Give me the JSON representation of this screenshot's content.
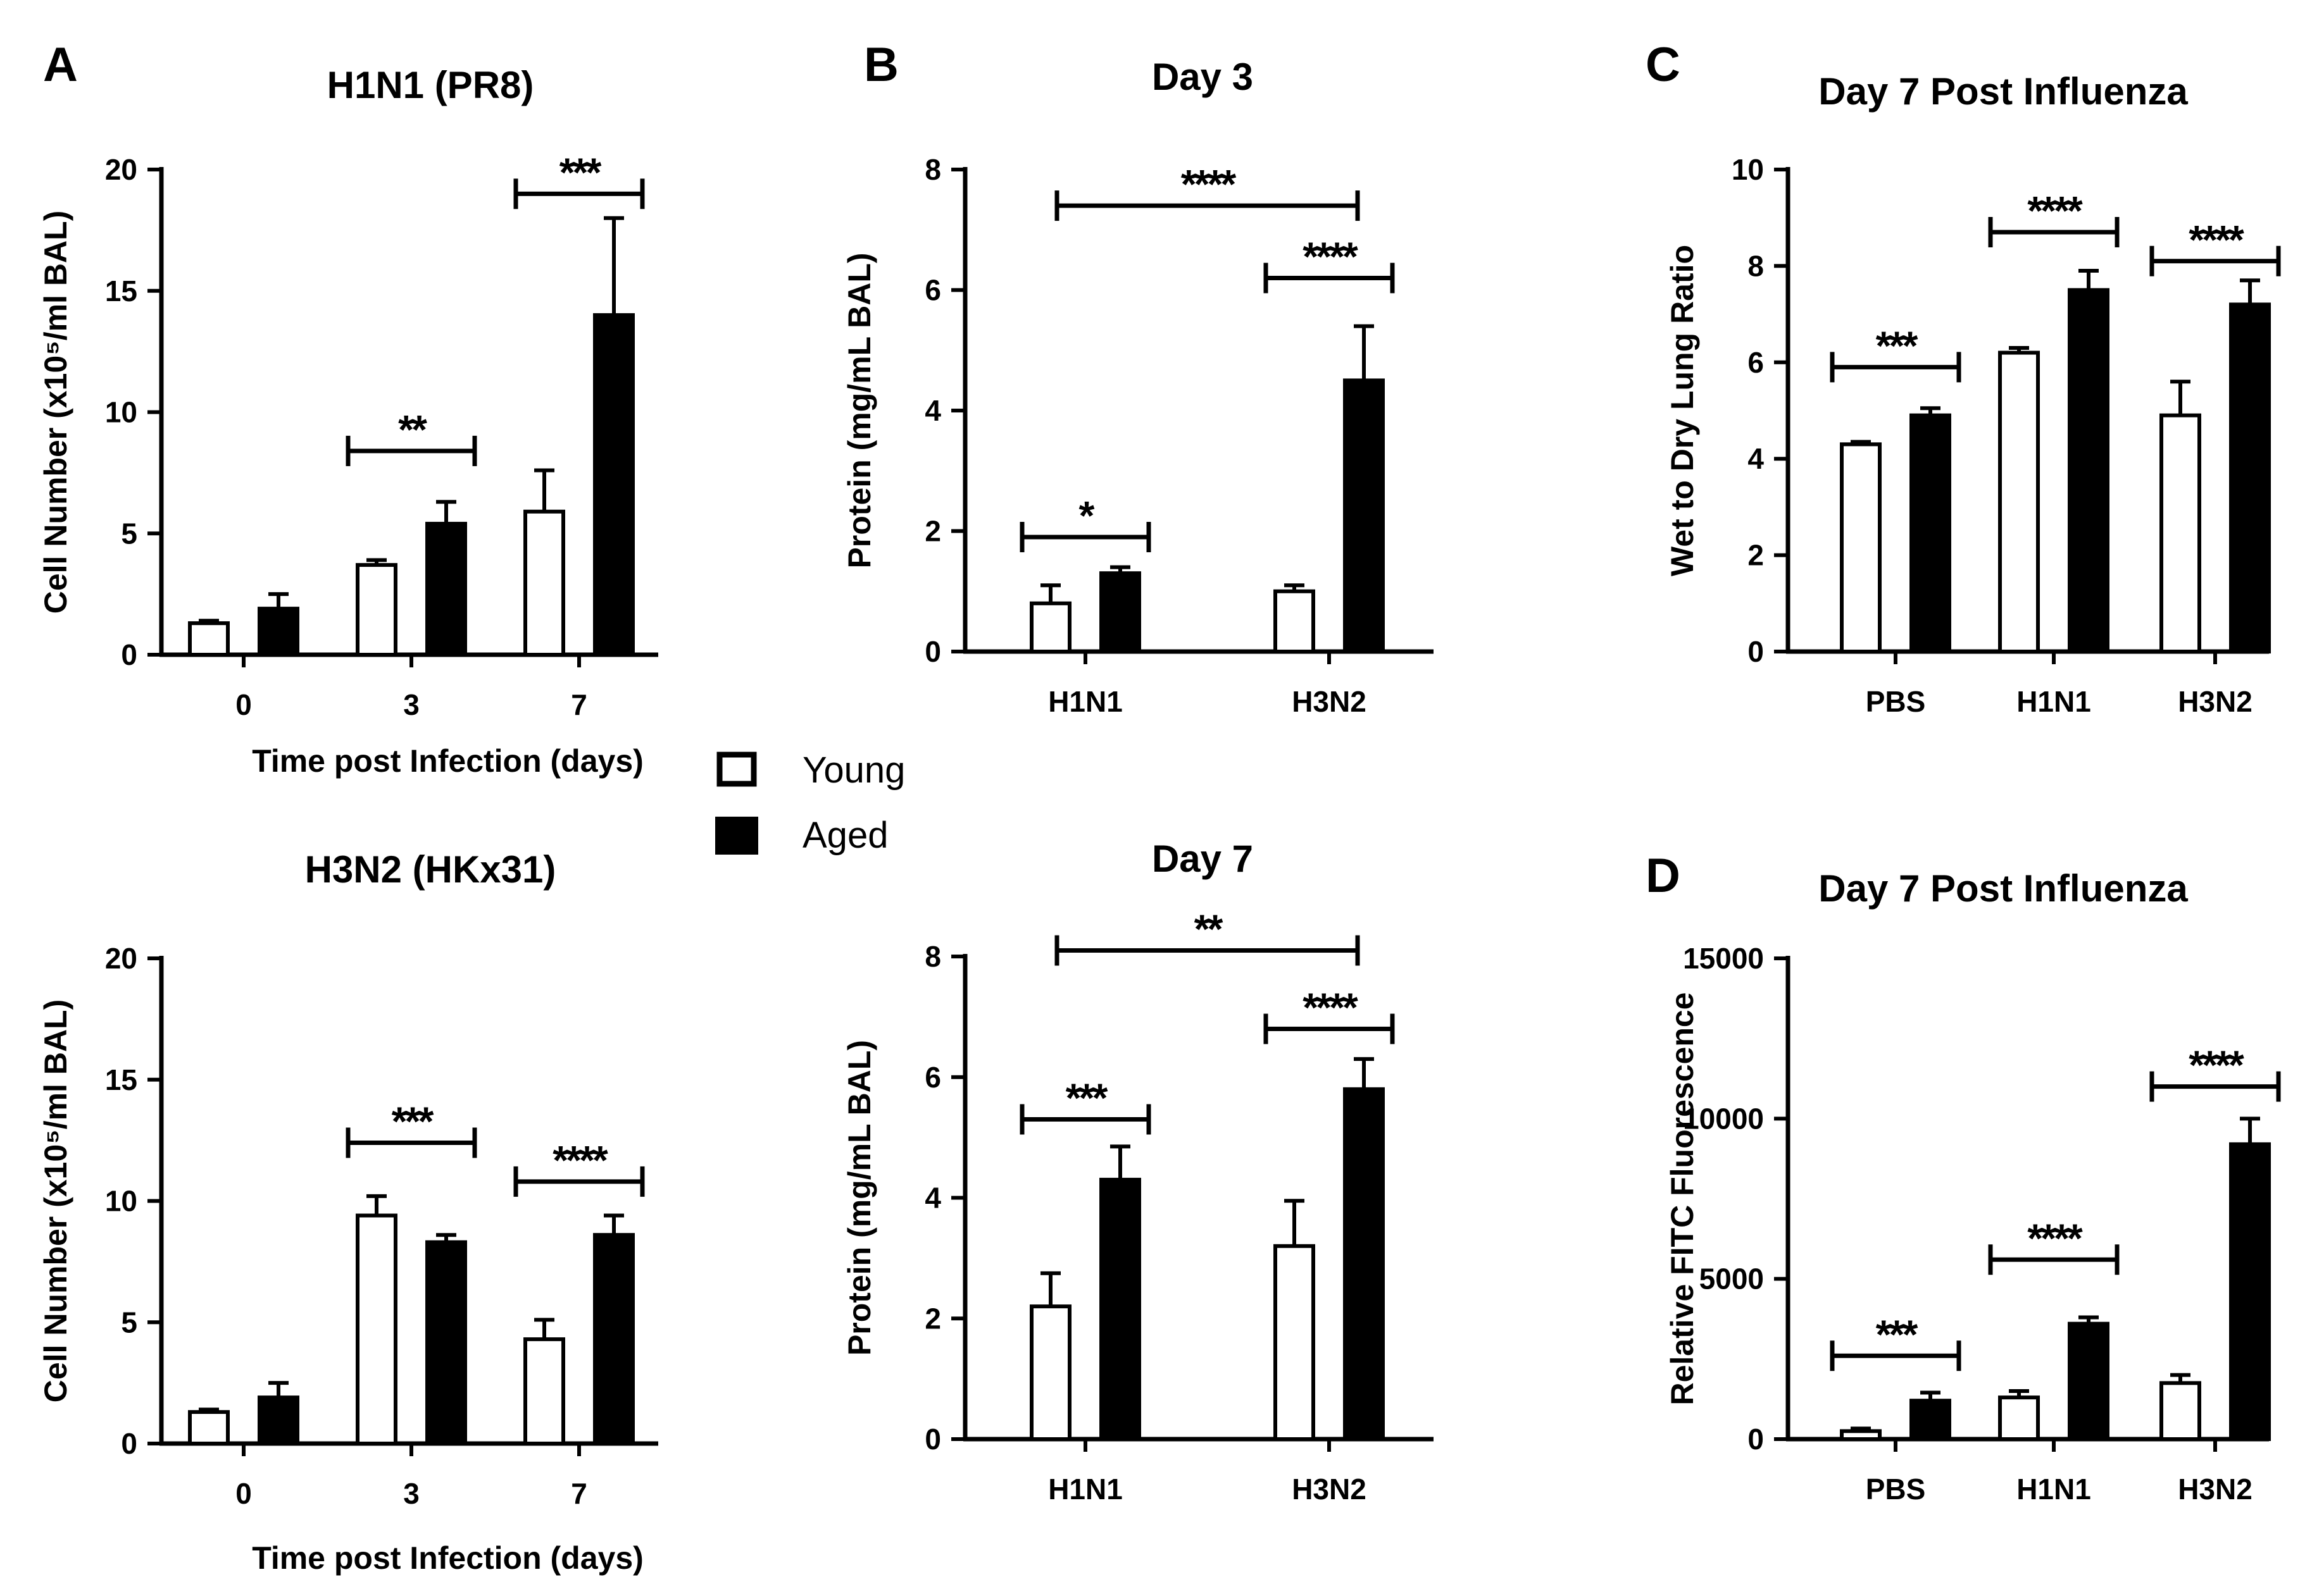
{
  "panel_letters": [
    "A",
    "B",
    "C",
    "D"
  ],
  "legend": {
    "items": [
      {
        "label": "Young",
        "fill": "#ffffff"
      },
      {
        "label": "Aged",
        "fill": "#000000"
      }
    ]
  },
  "colors": {
    "young": "#ffffff",
    "aged": "#000000",
    "stroke": "#000000"
  },
  "chart_data": [
    {
      "id": "A-top",
      "panel": "A",
      "type": "bar",
      "title": "H1N1 (PR8)",
      "xlabel": "Time post Infection (days)",
      "ylabel": "Cell Number (x10⁵/ml BAL)",
      "categories": [
        "0",
        "3",
        "7"
      ],
      "ylim": [
        0,
        20
      ],
      "yticks": [
        0,
        5,
        10,
        15,
        20
      ],
      "ytick_labels": [
        "0",
        "5",
        "10",
        "15",
        "20"
      ],
      "series": [
        {
          "name": "Young",
          "values": [
            1.3,
            3.7,
            5.9
          ],
          "errors": [
            0.1,
            0.2,
            1.7
          ]
        },
        {
          "name": "Aged",
          "values": [
            1.9,
            5.4,
            14.0
          ],
          "errors": [
            0.6,
            0.9,
            4.0
          ]
        }
      ],
      "significance": [
        {
          "category": 1,
          "label": "**",
          "level": 8.4
        },
        {
          "category": 2,
          "label": "***",
          "level": 19.0
        }
      ]
    },
    {
      "id": "A-bottom",
      "panel": "A",
      "type": "bar",
      "title": "H3N2 (HKx31)",
      "xlabel": "Time post Infection (days)",
      "ylabel": "Cell Number (x10⁵/ml BAL)",
      "categories": [
        "0",
        "3",
        "7"
      ],
      "ylim": [
        0,
        20
      ],
      "yticks": [
        0,
        5,
        10,
        15,
        20
      ],
      "ytick_labels": [
        "0",
        "5",
        "10",
        "15",
        "20"
      ],
      "series": [
        {
          "name": "Young",
          "values": [
            1.3,
            9.4,
            4.3
          ],
          "errors": [
            0.1,
            0.8,
            0.8
          ]
        },
        {
          "name": "Aged",
          "values": [
            1.9,
            8.3,
            8.6
          ],
          "errors": [
            0.6,
            0.3,
            0.8
          ]
        }
      ],
      "significance": [
        {
          "category": 1,
          "label": "***",
          "level": 12.4
        },
        {
          "category": 2,
          "label": "****",
          "level": 10.8
        }
      ]
    },
    {
      "id": "B-top",
      "panel": "B",
      "type": "bar",
      "title": "Day 3",
      "xlabel": "",
      "ylabel": "Protein (mg/mL BAL)",
      "categories": [
        "H1N1",
        "H3N2"
      ],
      "ylim": [
        0,
        8
      ],
      "yticks": [
        0,
        2,
        4,
        6,
        8
      ],
      "ytick_labels": [
        "0",
        "2",
        "4",
        "6",
        "8"
      ],
      "series": [
        {
          "name": "Young",
          "values": [
            0.8,
            1.0
          ],
          "errors": [
            0.3,
            0.1
          ]
        },
        {
          "name": "Aged",
          "values": [
            1.3,
            4.5
          ],
          "errors": [
            0.1,
            0.9
          ]
        }
      ],
      "significance": [
        {
          "category": 0,
          "label": "*",
          "level": 1.9
        },
        {
          "category": 1,
          "label": "****",
          "level": 6.2
        },
        {
          "span": [
            0,
            1
          ],
          "label": "****",
          "level": 7.4
        }
      ]
    },
    {
      "id": "B-bottom",
      "panel": "B",
      "type": "bar",
      "title": "Day 7",
      "xlabel": "",
      "ylabel": "Protein (mg/mL BAL)",
      "categories": [
        "H1N1",
        "H3N2"
      ],
      "ylim": [
        0,
        8
      ],
      "yticks": [
        0,
        2,
        4,
        6,
        8
      ],
      "ytick_labels": [
        "0",
        "2",
        "4",
        "6",
        "8"
      ],
      "series": [
        {
          "name": "Young",
          "values": [
            2.2,
            3.2
          ],
          "errors": [
            0.55,
            0.75
          ]
        },
        {
          "name": "Aged",
          "values": [
            4.3,
            5.8
          ],
          "errors": [
            0.55,
            0.5
          ]
        }
      ],
      "significance": [
        {
          "category": 0,
          "label": "***",
          "level": 5.3
        },
        {
          "category": 1,
          "label": "****",
          "level": 6.8
        },
        {
          "span": [
            0,
            1
          ],
          "label": "**",
          "level": 8.1
        }
      ]
    },
    {
      "id": "C",
      "panel": "C",
      "type": "bar",
      "title": "Day 7 Post Influenza",
      "xlabel": "",
      "ylabel": "Wet to Dry Lung Ratio",
      "categories": [
        "PBS",
        "H1N1",
        "H3N2"
      ],
      "ylim": [
        0,
        10
      ],
      "yticks": [
        0,
        2,
        4,
        6,
        8,
        10
      ],
      "ytick_labels": [
        "0",
        "2",
        "4",
        "6",
        "8",
        "10"
      ],
      "series": [
        {
          "name": "Young",
          "values": [
            4.3,
            6.2,
            4.9
          ],
          "errors": [
            0.05,
            0.1,
            0.7
          ]
        },
        {
          "name": "Aged",
          "values": [
            4.9,
            7.5,
            7.2
          ],
          "errors": [
            0.15,
            0.4,
            0.5
          ]
        }
      ],
      "significance": [
        {
          "category": 0,
          "label": "***",
          "level": 5.9
        },
        {
          "category": 1,
          "label": "****",
          "level": 8.7
        },
        {
          "category": 2,
          "label": "****",
          "level": 8.1
        }
      ]
    },
    {
      "id": "D",
      "panel": "D",
      "type": "bar",
      "title": "Day 7 Post Influenza",
      "xlabel": "",
      "ylabel": "Relative FITC Fluorescence",
      "categories": [
        "PBS",
        "H1N1",
        "H3N2"
      ],
      "ylim": [
        0,
        15000
      ],
      "yticks": [
        0,
        5000,
        10000,
        15000
      ],
      "ytick_labels": [
        "0",
        "5000",
        "10000",
        "15000"
      ],
      "series": [
        {
          "name": "Young",
          "values": [
            250,
            1300,
            1750
          ],
          "errors": [
            80,
            200,
            250
          ]
        },
        {
          "name": "Aged",
          "values": [
            1200,
            3600,
            9200
          ],
          "errors": [
            250,
            200,
            800
          ]
        }
      ],
      "significance": [
        {
          "category": 0,
          "label": "***",
          "level": 2600
        },
        {
          "category": 1,
          "label": "****",
          "level": 5600
        },
        {
          "category": 2,
          "label": "****",
          "level": 11000
        }
      ]
    }
  ]
}
